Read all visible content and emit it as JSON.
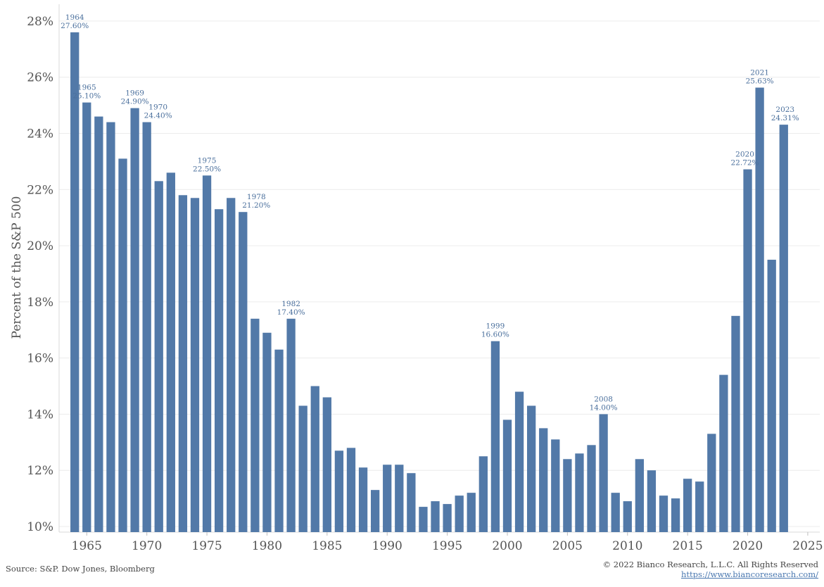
{
  "chart_data": {
    "type": "bar",
    "ylabel": "Percent of the S&P 500",
    "xlim": [
      1962.7,
      2026.0
    ],
    "ylim": [
      9.8,
      28.6
    ],
    "yticks": [
      10,
      12,
      14,
      16,
      18,
      20,
      22,
      24,
      26,
      28
    ],
    "ytick_labels": [
      "10%",
      "12%",
      "14%",
      "16%",
      "18%",
      "20%",
      "22%",
      "24%",
      "26%",
      "28%"
    ],
    "xticks": [
      1965,
      1970,
      1975,
      1980,
      1985,
      1990,
      1995,
      2000,
      2005,
      2010,
      2015,
      2020,
      2025
    ],
    "xtick_labels": [
      "1965",
      "1970",
      "1975",
      "1980",
      "1985",
      "1990",
      "1995",
      "2000",
      "2005",
      "2010",
      "2015",
      "2020",
      "2025"
    ],
    "grid": true,
    "bar_color": "#5279a8",
    "annotation_color": "#4a6f9c",
    "years": [
      1964,
      1965,
      1966,
      1967,
      1968,
      1969,
      1970,
      1971,
      1972,
      1973,
      1974,
      1975,
      1976,
      1977,
      1978,
      1979,
      1980,
      1981,
      1982,
      1983,
      1984,
      1985,
      1986,
      1987,
      1988,
      1989,
      1990,
      1991,
      1992,
      1993,
      1994,
      1995,
      1996,
      1997,
      1998,
      1999,
      2000,
      2001,
      2002,
      2003,
      2004,
      2005,
      2006,
      2007,
      2008,
      2009,
      2010,
      2011,
      2012,
      2013,
      2014,
      2015,
      2016,
      2017,
      2018,
      2019,
      2020,
      2021,
      2022,
      2023
    ],
    "values": [
      27.6,
      25.1,
      24.6,
      24.4,
      23.1,
      24.9,
      24.4,
      22.3,
      22.6,
      21.8,
      21.7,
      22.5,
      21.3,
      21.7,
      21.2,
      17.4,
      16.9,
      16.3,
      17.4,
      14.3,
      15.0,
      14.6,
      12.7,
      12.8,
      12.1,
      11.3,
      12.2,
      12.2,
      11.9,
      10.7,
      10.9,
      10.8,
      11.1,
      11.2,
      12.5,
      16.6,
      13.8,
      14.8,
      14.3,
      13.5,
      13.1,
      12.4,
      12.6,
      12.9,
      14.0,
      11.2,
      10.9,
      12.4,
      12.0,
      11.1,
      11.0,
      11.7,
      11.6,
      13.3,
      15.4,
      17.5,
      22.72,
      25.63,
      19.5,
      24.31
    ],
    "annotations": [
      {
        "year": 1964,
        "label_year": "1964",
        "label_value": "27.60%"
      },
      {
        "year": 1965,
        "label_year": "1965",
        "label_value": "25.10%"
      },
      {
        "year": 1969,
        "label_year": "1969",
        "label_value": "24.90%"
      },
      {
        "year": 1970,
        "label_year": "1970",
        "label_value": "24.40%"
      },
      {
        "year": 1975,
        "label_year": "1975",
        "label_value": "22.50%"
      },
      {
        "year": 1978,
        "label_year": "1978",
        "label_value": "21.20%"
      },
      {
        "year": 1982,
        "label_year": "1982",
        "label_value": "17.40%"
      },
      {
        "year": 1999,
        "label_year": "1999",
        "label_value": "16.60%"
      },
      {
        "year": 2008,
        "label_year": "2008",
        "label_value": "14.00%"
      },
      {
        "year": 2020,
        "label_year": "2020",
        "label_value": "22.72%"
      },
      {
        "year": 2021,
        "label_year": "2021",
        "label_value": "25.63%"
      },
      {
        "year": 2023,
        "label_year": "2023",
        "label_value": "24.31%"
      }
    ]
  },
  "footer": {
    "source": "Source: S&P. Dow Jones, Bloomberg",
    "copyright": "© 2022 Bianco Research, L.L.C. All Rights Reserved",
    "url": "https://www.biancoresearch.com/"
  }
}
